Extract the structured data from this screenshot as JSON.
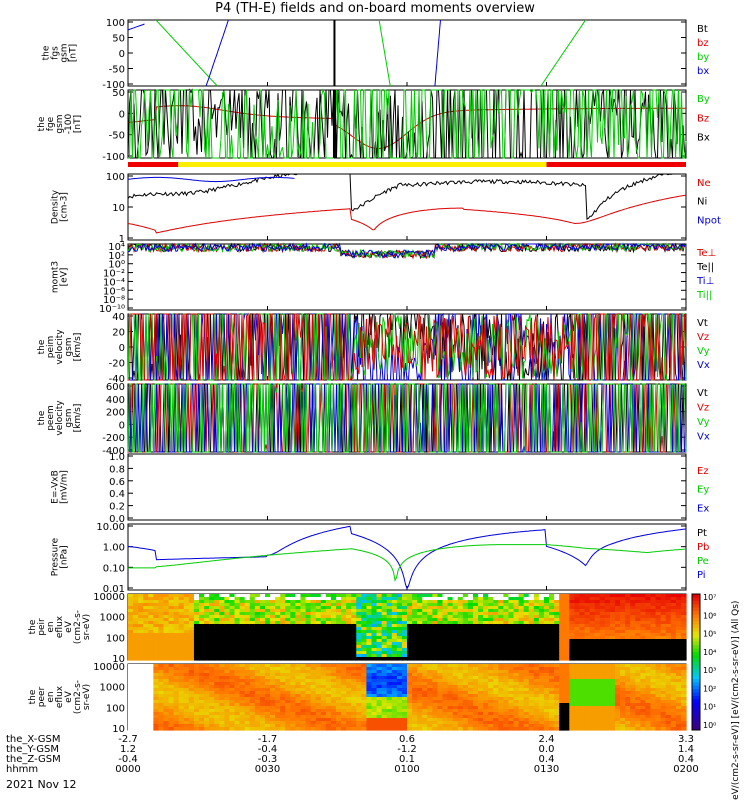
{
  "title": "P4 (TH-E) fields and on-board moments overview",
  "date": "2021 Nov 12",
  "colors": {
    "black": "#000000",
    "red": "#dd0000",
    "green": "#00cc00",
    "blue": "#0000dd"
  },
  "chart_data": [
    {
      "type": "line",
      "ylabel": [
        "the",
        "fgs",
        "gsm",
        "[nT]"
      ],
      "yticks": [
        "100",
        "50",
        "0",
        "-50",
        "-100"
      ],
      "ylim": [
        -100,
        100
      ],
      "legend": [
        {
          "name": "Bt",
          "color": "#000000"
        },
        {
          "name": "bz",
          "color": "#dd0000"
        },
        {
          "name": "by",
          "color": "#00cc00"
        },
        {
          "name": "bx",
          "color": "#0000dd"
        }
      ]
    },
    {
      "type": "line",
      "ylabel": [
        "the",
        "fge",
        "gsm",
        "-100",
        "[nT]"
      ],
      "yticks": [
        "50",
        "0",
        "-50",
        "-100"
      ],
      "ylim": [
        -120,
        70
      ],
      "legend": [
        {
          "name": "By",
          "color": "#00cc00"
        },
        {
          "name": "Bz",
          "color": "#dd0000"
        },
        {
          "name": "Bx",
          "color": "#000000"
        }
      ]
    },
    {
      "type": "line",
      "ylabel": [
        "Density",
        "[cm-3]"
      ],
      "yticks": [
        "100",
        "10",
        "1"
      ],
      "scale": "log",
      "legend": [
        {
          "name": "Ne",
          "color": "#dd0000"
        },
        {
          "name": "Ni",
          "color": "#000000"
        },
        {
          "name": "Npot",
          "color": "#0000dd"
        }
      ]
    },
    {
      "type": "line",
      "ylabel": [
        "momt3",
        "[eV]"
      ],
      "yticks": [
        "10⁴",
        "10²",
        "10⁰",
        "10⁻²",
        "10⁻⁴",
        "10⁻⁶",
        "10⁻⁸",
        "10⁻¹⁰"
      ],
      "scale": "log",
      "legend": [
        {
          "name": "Te⊥",
          "color": "#dd0000"
        },
        {
          "name": "Te||",
          "color": "#000000"
        },
        {
          "name": "Ti⊥",
          "color": "#0000dd"
        },
        {
          "name": "Ti||",
          "color": "#00cc00"
        }
      ]
    },
    {
      "type": "line",
      "ylabel": [
        "the",
        "peim",
        "velocity",
        "gsm",
        "[km/s]"
      ],
      "yticks": [
        "40",
        "20",
        "0",
        "-20",
        "-40"
      ],
      "ylim": [
        -40,
        40
      ],
      "legend": [
        {
          "name": "Vt",
          "color": "#000000"
        },
        {
          "name": "Vz",
          "color": "#dd0000"
        },
        {
          "name": "Vy",
          "color": "#00cc00"
        },
        {
          "name": "Vx",
          "color": "#0000dd"
        }
      ]
    },
    {
      "type": "line",
      "ylabel": [
        "the",
        "peem",
        "velocity",
        "gsm",
        "[km/s]"
      ],
      "yticks": [
        "600",
        "400",
        "200",
        "0",
        "-200",
        "-400"
      ],
      "ylim": [
        -400,
        600
      ],
      "legend": [
        {
          "name": "Vt",
          "color": "#000000"
        },
        {
          "name": "Vz",
          "color": "#dd0000"
        },
        {
          "name": "Vy",
          "color": "#00cc00"
        },
        {
          "name": "Vx",
          "color": "#0000dd"
        }
      ]
    },
    {
      "type": "line",
      "ylabel": [
        "E=-VxB",
        "[mV/m]"
      ],
      "yticks": [
        "1.0",
        "0.8",
        "0.6",
        "0.4",
        "0.2",
        "0.0"
      ],
      "ylim": [
        0,
        1
      ],
      "legend": [
        {
          "name": "Ez",
          "color": "#dd0000"
        },
        {
          "name": "Ey",
          "color": "#00cc00"
        },
        {
          "name": "Ex",
          "color": "#0000dd"
        }
      ]
    },
    {
      "type": "line",
      "ylabel": [
        "Pressure",
        "[nPa]"
      ],
      "yticks": [
        "10.00",
        "1.00",
        "0.10",
        "0.01"
      ],
      "scale": "log",
      "legend": [
        {
          "name": "Pt",
          "color": "#000000"
        },
        {
          "name": "Pb",
          "color": "#dd0000"
        },
        {
          "name": "Pe",
          "color": "#00cc00"
        },
        {
          "name": "Pi",
          "color": "#0000dd"
        }
      ]
    },
    {
      "type": "heatmap",
      "ylabel": [
        "the",
        "peir",
        "en",
        "eflux",
        "eV",
        "(cm2-s-",
        "sr-eV)"
      ],
      "yticks": [
        "10000",
        "1000",
        "100",
        "10"
      ],
      "scale": "log"
    },
    {
      "type": "heatmap",
      "ylabel": [
        "the",
        "peer",
        "en",
        "eflux",
        "eV",
        "(cm2-s-",
        "sr-eV)"
      ],
      "yticks": [
        "10000",
        "1000",
        "100",
        "10"
      ],
      "scale": "log"
    }
  ],
  "colorbar": {
    "ticks": [
      "10⁷",
      "10⁶",
      "10⁵",
      "10⁴",
      "10³",
      "10²",
      "10¹",
      "10⁰"
    ],
    "label": "[eV/(cm2-s-sr-eV)] [eV/(cm2-s-sr-eV)] (All Qs)"
  },
  "xaxis": {
    "rows": [
      {
        "label": "the_X-GSM",
        "values": [
          "-2.7",
          "-1.7",
          "0.6",
          "2.4",
          "3.3"
        ]
      },
      {
        "label": "the_Y-GSM",
        "values": [
          "1.2",
          "-0.4",
          "-1.2",
          "0.0",
          "1.4"
        ]
      },
      {
        "label": "the_Z-GSM",
        "values": [
          "-0.4",
          "-0.3",
          "0.1",
          "0.4",
          "0.4"
        ]
      },
      {
        "label": "hhmm",
        "values": [
          "0000",
          "0030",
          "0100",
          "0130",
          "0200"
        ]
      }
    ]
  }
}
